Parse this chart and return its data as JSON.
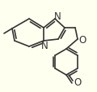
{
  "bg_color": "#fffff0",
  "bond_color": "#333333",
  "bond_lw": 1.2,
  "figsize": [
    1.2,
    1.14
  ],
  "dpi": 100,
  "xlim": [
    0,
    120
  ],
  "ylim": [
    0,
    114
  ]
}
